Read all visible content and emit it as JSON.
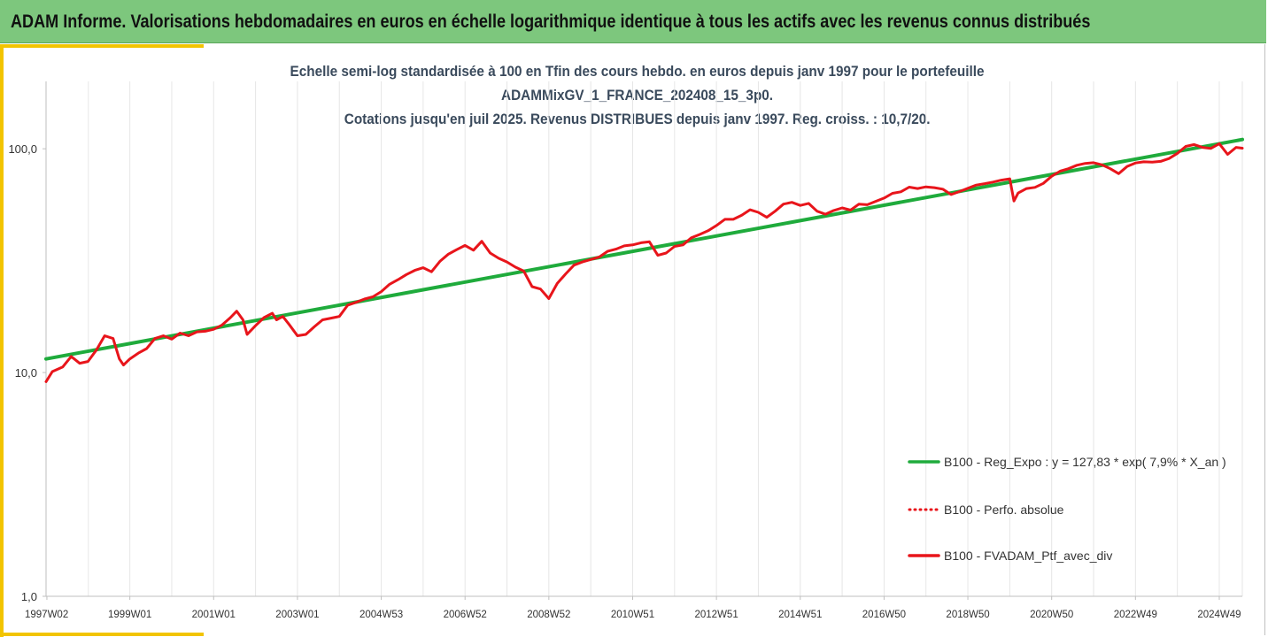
{
  "header": {
    "title": "ADAM Informe. Valorisations hebdomadaires en euros en échelle logarithmique identique à tous les actifs avec les revenus connus distribués"
  },
  "chart_data": {
    "type": "line",
    "title_lines": [
      "Echelle semi-log standardisée à 100 en Tfin des cours hebdo.  en euros depuis janv 1997 pour le portefeuille",
      "ADAMMixGV_1_FRANCE_202408_15_3p0.",
      "Cotations  jusqu'en juil 2025. Revenus DISTRIBUES depuis janv 1997. Reg. croiss. : 10,7/20."
    ],
    "y_scale": "log",
    "ylim": [
      1,
      200
    ],
    "y_ticks": [
      {
        "value": 100,
        "label": "100,0"
      },
      {
        "value": 10,
        "label": "10,0"
      },
      {
        "value": 1,
        "label": "1,0"
      }
    ],
    "xlim": [
      1997.0,
      2025.55
    ],
    "x_ticks": [
      {
        "value": 1997.02,
        "label": "1997W02"
      },
      {
        "value": 1999.0,
        "label": "1999W01"
      },
      {
        "value": 2001.0,
        "label": "2001W01"
      },
      {
        "value": 2003.0,
        "label": "2003W01"
      },
      {
        "value": 2005.0,
        "label": "2004W53"
      },
      {
        "value": 2007.0,
        "label": "2006W52"
      },
      {
        "value": 2009.0,
        "label": "2008W52"
      },
      {
        "value": 2011.0,
        "label": "2010W51"
      },
      {
        "value": 2013.0,
        "label": "2012W51"
      },
      {
        "value": 2015.0,
        "label": "2014W51"
      },
      {
        "value": 2017.0,
        "label": "2016W50"
      },
      {
        "value": 2019.0,
        "label": "2018W50"
      },
      {
        "value": 2021.0,
        "label": "2020W50"
      },
      {
        "value": 2023.0,
        "label": "2022W49"
      },
      {
        "value": 2025.0,
        "label": "2024W49"
      }
    ],
    "grid": {
      "vertical": true,
      "horizontal": false
    },
    "legend_position": "bottom-right",
    "series": [
      {
        "name": "B100 - Reg_Expo : y = 127,83 * exp( 7,9% *  X_an )",
        "style": "solid",
        "color": "#1fab3c",
        "x": [
          1997.0,
          2025.55
        ],
        "y": [
          11.5,
          110
        ]
      },
      {
        "name": "B100 - Perfo. absolue",
        "style": "dotted",
        "color": "#e8151b",
        "x": [],
        "y": []
      },
      {
        "name": "B100 - FVADAM_Ptf_avec_div",
        "style": "solid",
        "color": "#e8151b",
        "x": [
          1997.0,
          1997.15,
          1997.4,
          1997.6,
          1997.8,
          1998.0,
          1998.2,
          1998.4,
          1998.6,
          1998.75,
          1998.85,
          1999.0,
          1999.2,
          1999.4,
          1999.6,
          1999.8,
          2000.0,
          2000.2,
          2000.4,
          2000.6,
          2000.8,
          2001.0,
          2001.2,
          2001.4,
          2001.55,
          2001.7,
          2001.8,
          2002.0,
          2002.2,
          2002.4,
          2002.5,
          2002.65,
          2002.8,
          2003.0,
          2003.2,
          2003.4,
          2003.6,
          2003.8,
          2004.0,
          2004.2,
          2004.4,
          2004.6,
          2004.8,
          2005.0,
          2005.2,
          2005.4,
          2005.6,
          2005.8,
          2006.0,
          2006.2,
          2006.4,
          2006.6,
          2006.8,
          2007.0,
          2007.2,
          2007.4,
          2007.6,
          2007.8,
          2008.0,
          2008.2,
          2008.4,
          2008.6,
          2008.8,
          2009.0,
          2009.2,
          2009.4,
          2009.6,
          2009.8,
          2010.0,
          2010.2,
          2010.4,
          2010.6,
          2010.8,
          2011.0,
          2011.2,
          2011.4,
          2011.6,
          2011.8,
          2012.0,
          2012.2,
          2012.4,
          2012.6,
          2012.8,
          2013.0,
          2013.2,
          2013.4,
          2013.6,
          2013.8,
          2014.0,
          2014.2,
          2014.4,
          2014.6,
          2014.8,
          2015.0,
          2015.2,
          2015.4,
          2015.6,
          2015.8,
          2016.0,
          2016.2,
          2016.4,
          2016.6,
          2016.8,
          2017.0,
          2017.2,
          2017.4,
          2017.6,
          2017.8,
          2018.0,
          2018.2,
          2018.4,
          2018.6,
          2018.8,
          2019.0,
          2019.2,
          2019.4,
          2019.6,
          2019.8,
          2020.0,
          2020.1,
          2020.2,
          2020.4,
          2020.6,
          2020.8,
          2021.0,
          2021.2,
          2021.4,
          2021.6,
          2021.8,
          2022.0,
          2022.2,
          2022.4,
          2022.6,
          2022.8,
          2023.0,
          2023.2,
          2023.4,
          2023.6,
          2023.8,
          2024.0,
          2024.2,
          2024.4,
          2024.6,
          2024.8,
          2025.0,
          2025.2,
          2025.4,
          2025.55
        ],
        "y": [
          9.1,
          10.1,
          10.6,
          11.8,
          11.0,
          11.2,
          12.6,
          14.6,
          14.2,
          11.5,
          10.8,
          11.5,
          12.2,
          12.8,
          14.2,
          14.6,
          14.1,
          15.0,
          14.6,
          15.2,
          15.3,
          15.6,
          16.3,
          17.6,
          18.8,
          17.2,
          14.8,
          16.2,
          17.6,
          18.4,
          17.2,
          17.8,
          16.4,
          14.6,
          14.8,
          16.0,
          17.2,
          17.5,
          17.8,
          20.0,
          20.6,
          21.3,
          21.8,
          23.0,
          24.8,
          26.0,
          27.4,
          28.6,
          29.4,
          28.2,
          31.4,
          33.8,
          35.4,
          37.0,
          35.2,
          38.6,
          34.2,
          32.4,
          31.2,
          29.6,
          28.4,
          24.2,
          23.6,
          21.4,
          25.0,
          27.6,
          30.2,
          31.2,
          32.0,
          32.8,
          34.8,
          35.6,
          36.8,
          37.2,
          38.0,
          38.4,
          33.4,
          34.2,
          36.6,
          37.2,
          40.0,
          41.4,
          43.0,
          45.4,
          48.4,
          48.4,
          50.4,
          53.4,
          52.0,
          49.4,
          52.6,
          56.6,
          57.6,
          55.8,
          57.0,
          52.6,
          51.0,
          53.0,
          54.4,
          53.2,
          56.6,
          56.2,
          58.2,
          60.2,
          63.2,
          64.2,
          67.4,
          66.4,
          67.6,
          67.0,
          66.0,
          62.4,
          64.4,
          66.6,
          68.8,
          69.8,
          71.0,
          72.4,
          73.4,
          58.4,
          63.4,
          66.4,
          67.2,
          70.0,
          75.4,
          79.4,
          81.4,
          84.4,
          86.0,
          86.6,
          84.8,
          81.4,
          77.4,
          83.4,
          86.4,
          87.4,
          87.2,
          87.8,
          90.4,
          95.4,
          102.4,
          104.4,
          101.4,
          100.4,
          105.4,
          94.4,
          101.4,
          100.6
        ]
      }
    ]
  }
}
